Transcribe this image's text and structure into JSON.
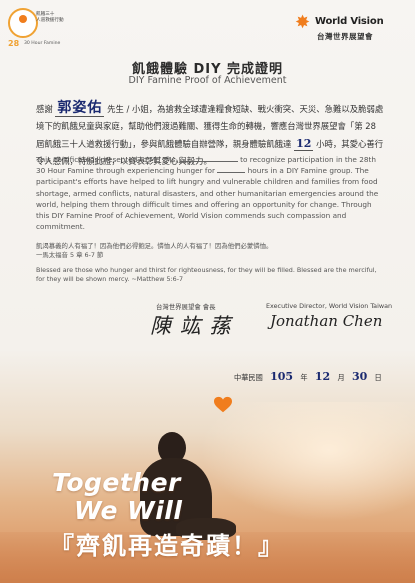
{
  "badge": {
    "zh": "飢餓三十\n人道救援行動",
    "number": "28",
    "en": "30 Hour Famine"
  },
  "logo": {
    "en": "World Vision",
    "zh": "台灣世界展望會",
    "icon": "star-icon"
  },
  "title_zh": "飢餓體驗 DIY 完成證明",
  "title_en": "DIY Famine Proof of Achievement",
  "zh_body": {
    "p1": "感謝",
    "name": "郭姿佑",
    "p2": "先生 / 小姐，為搶救全球遭逢糧食短缺、戰火衝突、天災、急難以及脆弱處境下的飢餓兒童與家庭，幫助他們渡過難關、獲得生命的轉機，響應台灣世界展望會「第 28 屆飢餓三十人道救援行動」，參與飢餓體驗自辦營隊，親身體驗飢餓達",
    "hours": "12",
    "p3": "小時，其愛心善行令人感佩，特頒此證，以資表彰其愛心與毅力。"
  },
  "en_body": {
    "p1": "This certificate is presented to Mr. /Ms.",
    "p2": "to recognize participation in the 28th 30 Hour Famine through experiencing hunger for",
    "p3": "hours in a DIY Famine group. The participant's efforts have helped to lift hungry and vulnerable children and families from food shortage, armed conflicts, natural disasters, and other humanitarian emergencies around the world, helping them through difficult times and offering an opportunity for change. Through this DIY Famine Proof of Achievement, World Vision commends such compassion and commitment."
  },
  "verse": {
    "zh": "飢渴慕義的人有福了！因為他們必得飽足。憐恤人的人有福了！因為他們必蒙憐恤。",
    "ref_zh": "一馬太福音 5 章 6-7 節",
    "en": "Blessed are those who hunger and thirst for righteousness, for they will be filled. Blessed are the merciful, for they will be shown mercy.  ~Matthew 5:6-7"
  },
  "signatures": {
    "left_label": "台灣世界展望會  會長",
    "left_name": "陳 竑 蓀",
    "right_label": "Executive Director, World Vision Taiwan",
    "right_name": "Jonathan Chen"
  },
  "date": {
    "prefix": "中華民國",
    "year": "105",
    "year_unit": "年",
    "month": "12",
    "month_unit": "月",
    "day": "30",
    "day_unit": "日"
  },
  "slogan": {
    "line1": "Together",
    "line2": "We Will",
    "line3": "『齊飢再造奇蹟！』"
  },
  "colors": {
    "accent": "#f07d1d",
    "handwriting": "#1b2a70"
  }
}
